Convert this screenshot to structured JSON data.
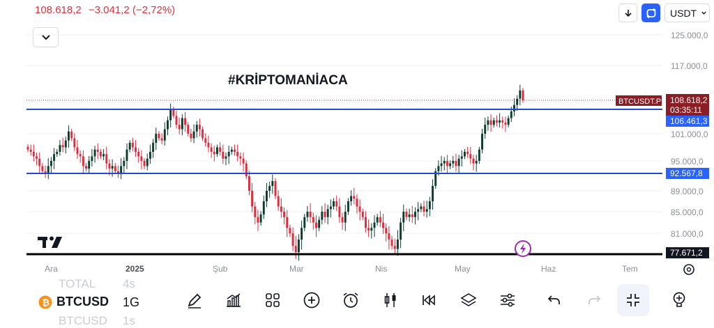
{
  "header": {
    "price": "108.618,2",
    "change": "−3.041,2 (−2,72%)",
    "currency": "USDT"
  },
  "chart_data": {
    "type": "candlestick",
    "watermark": "#KRİPTOMANİACA",
    "y_axis_labels": [
      "125.000,0",
      "117.000,0",
      "101.000,0",
      "95.000,0",
      "89.000,0",
      "85.000,0",
      "81.000,0"
    ],
    "x_axis_labels": [
      "Ara",
      "2025",
      "Şub",
      "Mar",
      "Nis",
      "May",
      "Haz",
      "Tem"
    ],
    "price_tag": {
      "symbol": "BTCUSDT.P",
      "value": "108.618,2",
      "countdown": "03:35:11",
      "color": "#8b1d24"
    },
    "horizontal_lines": [
      {
        "value": "106.461,3",
        "color": "#2249d6"
      },
      {
        "value": "92.567,8",
        "color": "#2249d6"
      },
      {
        "value": "77.671,2",
        "color": "#000000"
      }
    ],
    "candle_closes": [
      97.5,
      97,
      96,
      95.5,
      94,
      93,
      92.5,
      94,
      95,
      96.5,
      97,
      98.5,
      98,
      99.5,
      101.5,
      100,
      98,
      96.5,
      96,
      94,
      93.5,
      95,
      96,
      97.5,
      97,
      96,
      96.5,
      94.5,
      93.5,
      94,
      93,
      92.5,
      94,
      95,
      97.5,
      99,
      98,
      97,
      96,
      95,
      94,
      95.5,
      97,
      99,
      101,
      100,
      99.5,
      102,
      104,
      106.5,
      105,
      103,
      102,
      104.5,
      103,
      101,
      100,
      101.5,
      103,
      102,
      100,
      99,
      98,
      97,
      96.5,
      98,
      97,
      95.5,
      96,
      97,
      97.5,
      97,
      96,
      95.5,
      94.5,
      92,
      89,
      86,
      84,
      83,
      84.5,
      87,
      89,
      90,
      91,
      88,
      86,
      85,
      84,
      82,
      81,
      79,
      78,
      80,
      82,
      84,
      85,
      84,
      83,
      82,
      83.5,
      85,
      84,
      85.5,
      86,
      87,
      86,
      84,
      83,
      85,
      87,
      88,
      87.5,
      86,
      85,
      84,
      82,
      81.5,
      82,
      83,
      84,
      83,
      82,
      81,
      80,
      79,
      78.5,
      80,
      83,
      85,
      84,
      84.5,
      84,
      85,
      85.5,
      86,
      85,
      85.5,
      87,
      90,
      93,
      94,
      94.5,
      95,
      94,
      94.5,
      95,
      94,
      95.5,
      96,
      97,
      96.5,
      95.5,
      94.5,
      95,
      97.5,
      101,
      103,
      104,
      103,
      104,
      103.5,
      104,
      103.5,
      103,
      104.5,
      106,
      107.5,
      109,
      111,
      108.6
    ]
  },
  "toolbar": {
    "symbol": "BTCUSD",
    "interval": "1G",
    "ghost_above_symbol": "TOTAL",
    "ghost_above_interval": "4s",
    "ghost_below_symbol": "BTCUSD",
    "ghost_below_interval": "1s"
  }
}
